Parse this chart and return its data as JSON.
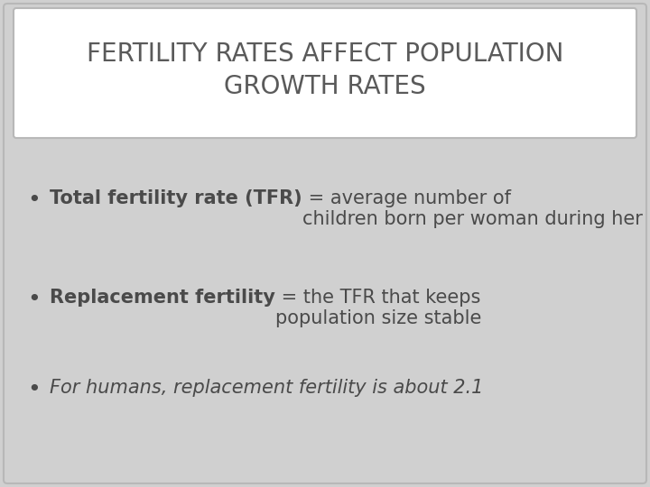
{
  "title_line1": "FERTILITY RATES AFFECT POPULATION",
  "title_line2": "GROWTH RATES",
  "title_color": "#5a5a5a",
  "title_bg_color": "#ffffff",
  "slide_bg_color": "#d0d0d0",
  "bullet1_bold": "Total fertility rate (TFR)",
  "bullet1_normal": " = average number of\nchildren born per woman during her lifetime",
  "bullet2_bold": "Replacement fertility",
  "bullet2_normal": " = the TFR that keeps\npopulation size stable",
  "bullet3_italic": "For humans, replacement fertility is about 2.1",
  "bullet_color": "#4a4a4a",
  "title_fontsize": 20,
  "body_fontsize": 15,
  "border_color": "#b8b8b8"
}
